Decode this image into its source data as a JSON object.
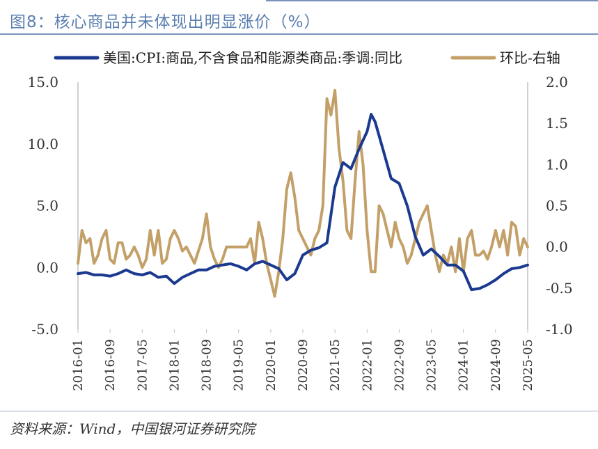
{
  "header": {
    "title": "图8：核心商品并未体现出明显涨价（%）"
  },
  "footer": {
    "source": "资料来源：Wind，中国银河证券研究院"
  },
  "colors": {
    "series1": "#1b3a8f",
    "series2": "#c4a069",
    "title": "#5b7fb0",
    "axis": "#bfbfbf"
  },
  "chart_data": {
    "type": "line",
    "legend_position": "top",
    "grid": false,
    "x_ticks": [
      "2016-01",
      "2016-09",
      "2017-05",
      "2018-01",
      "2018-09",
      "2019-05",
      "2020-01",
      "2020-09",
      "2021-05",
      "2022-01",
      "2022-09",
      "2023-05",
      "2024-01",
      "2024-09",
      "2025-05"
    ],
    "y_left": {
      "ylim": [
        -5,
        15
      ],
      "ticks": [
        "15.0",
        "10.0",
        "5.0",
        "0.0",
        "-5.0"
      ]
    },
    "y_right": {
      "ylim": [
        -1,
        2
      ],
      "ticks": [
        "2.0",
        "1.5",
        "1.0",
        "0.5",
        "0.0",
        "-0.5",
        "-1.0"
      ]
    },
    "x_range": [
      "2016-01",
      "2025-05"
    ],
    "series": [
      {
        "name": "美国:CPI:商品,不含食品和能源类商品:季调:同比",
        "axis": "left",
        "points": [
          [
            "2016-01",
            -0.5
          ],
          [
            "2016-03",
            -0.4
          ],
          [
            "2016-05",
            -0.6
          ],
          [
            "2016-07",
            -0.6
          ],
          [
            "2016-09",
            -0.7
          ],
          [
            "2016-11",
            -0.5
          ],
          [
            "2017-01",
            -0.2
          ],
          [
            "2017-03",
            -0.5
          ],
          [
            "2017-05",
            -0.6
          ],
          [
            "2017-07",
            -0.4
          ],
          [
            "2017-09",
            -0.8
          ],
          [
            "2017-11",
            -0.7
          ],
          [
            "2018-01",
            -1.3
          ],
          [
            "2018-03",
            -0.8
          ],
          [
            "2018-05",
            -0.5
          ],
          [
            "2018-07",
            -0.2
          ],
          [
            "2018-09",
            -0.2
          ],
          [
            "2018-11",
            0.1
          ],
          [
            "2019-01",
            0.2
          ],
          [
            "2019-03",
            0.3
          ],
          [
            "2019-05",
            0.1
          ],
          [
            "2019-07",
            -0.2
          ],
          [
            "2019-09",
            0.3
          ],
          [
            "2019-11",
            0.5
          ],
          [
            "2020-01",
            0.2
          ],
          [
            "2020-03",
            -0.1
          ],
          [
            "2020-05",
            -1.0
          ],
          [
            "2020-07",
            -0.5
          ],
          [
            "2020-09",
            1.0
          ],
          [
            "2020-11",
            1.4
          ],
          [
            "2021-01",
            1.6
          ],
          [
            "2021-03",
            2.0
          ],
          [
            "2021-05",
            6.5
          ],
          [
            "2021-07",
            8.5
          ],
          [
            "2021-09",
            8.0
          ],
          [
            "2021-11",
            9.6
          ],
          [
            "2022-01",
            11.0
          ],
          [
            "2022-02",
            12.4
          ],
          [
            "2022-03",
            11.8
          ],
          [
            "2022-05",
            9.5
          ],
          [
            "2022-07",
            7.2
          ],
          [
            "2022-09",
            6.8
          ],
          [
            "2022-11",
            5.0
          ],
          [
            "2023-01",
            2.5
          ],
          [
            "2023-03",
            1.0
          ],
          [
            "2023-05",
            1.5
          ],
          [
            "2023-07",
            0.9
          ],
          [
            "2023-09",
            0.2
          ],
          [
            "2023-11",
            0.2
          ],
          [
            "2024-01",
            -0.3
          ],
          [
            "2024-03",
            -1.8
          ],
          [
            "2024-05",
            -1.7
          ],
          [
            "2024-07",
            -1.4
          ],
          [
            "2024-09",
            -1.0
          ],
          [
            "2024-11",
            -0.5
          ],
          [
            "2025-01",
            -0.1
          ],
          [
            "2025-03",
            0.0
          ],
          [
            "2025-05",
            0.2
          ]
        ]
      },
      {
        "name": "环比-右轴",
        "axis": "right",
        "points": [
          [
            "2016-01",
            -0.2
          ],
          [
            "2016-02",
            0.2
          ],
          [
            "2016-03",
            0.05
          ],
          [
            "2016-04",
            0.1
          ],
          [
            "2016-05",
            -0.2
          ],
          [
            "2016-06",
            -0.1
          ],
          [
            "2016-07",
            0.1
          ],
          [
            "2016-08",
            0.2
          ],
          [
            "2016-09",
            -0.15
          ],
          [
            "2016-10",
            -0.2
          ],
          [
            "2016-11",
            0.05
          ],
          [
            "2016-12",
            0.05
          ],
          [
            "2017-01",
            -0.15
          ],
          [
            "2017-02",
            -0.1
          ],
          [
            "2017-03",
            0.0
          ],
          [
            "2017-04",
            -0.1
          ],
          [
            "2017-05",
            -0.25
          ],
          [
            "2017-06",
            -0.15
          ],
          [
            "2017-07",
            0.2
          ],
          [
            "2017-08",
            -0.1
          ],
          [
            "2017-09",
            0.2
          ],
          [
            "2017-10",
            -0.2
          ],
          [
            "2017-11",
            -0.15
          ],
          [
            "2017-12",
            0.1
          ],
          [
            "2018-01",
            0.2
          ],
          [
            "2018-02",
            0.1
          ],
          [
            "2018-03",
            -0.05
          ],
          [
            "2018-04",
            0.0
          ],
          [
            "2018-05",
            -0.1
          ],
          [
            "2018-06",
            -0.2
          ],
          [
            "2018-07",
            -0.05
          ],
          [
            "2018-08",
            0.1
          ],
          [
            "2018-09",
            0.4
          ],
          [
            "2018-10",
            0.0
          ],
          [
            "2018-11",
            -0.15
          ],
          [
            "2018-12",
            -0.25
          ],
          [
            "2019-01",
            -0.15
          ],
          [
            "2019-02",
            0.0
          ],
          [
            "2019-03",
            0.0
          ],
          [
            "2019-04",
            0.0
          ],
          [
            "2019-05",
            0.0
          ],
          [
            "2019-06",
            0.0
          ],
          [
            "2019-07",
            0.0
          ],
          [
            "2019-08",
            0.1
          ],
          [
            "2019-09",
            -0.2
          ],
          [
            "2019-10",
            0.3
          ],
          [
            "2019-11",
            0.1
          ],
          [
            "2019-12",
            -0.2
          ],
          [
            "2020-01",
            -0.4
          ],
          [
            "2020-02",
            -0.6
          ],
          [
            "2020-03",
            -0.3
          ],
          [
            "2020-04",
            0.1
          ],
          [
            "2020-05",
            0.7
          ],
          [
            "2020-06",
            0.9
          ],
          [
            "2020-07",
            0.6
          ],
          [
            "2020-08",
            0.2
          ],
          [
            "2020-09",
            0.1
          ],
          [
            "2020-10",
            0.0
          ],
          [
            "2020-11",
            -0.1
          ],
          [
            "2020-12",
            0.1
          ],
          [
            "2021-01",
            0.2
          ],
          [
            "2021-02",
            0.5
          ],
          [
            "2021-03",
            1.8
          ],
          [
            "2021-04",
            1.6
          ],
          [
            "2021-05",
            1.9
          ],
          [
            "2021-06",
            1.2
          ],
          [
            "2021-07",
            0.8
          ],
          [
            "2021-08",
            0.2
          ],
          [
            "2021-09",
            0.1
          ],
          [
            "2021-10",
            0.8
          ],
          [
            "2021-11",
            1.4
          ],
          [
            "2021-12",
            1.0
          ],
          [
            "2022-01",
            0.2
          ],
          [
            "2022-02",
            -0.3
          ],
          [
            "2022-03",
            -0.3
          ],
          [
            "2022-04",
            0.5
          ],
          [
            "2022-05",
            0.4
          ],
          [
            "2022-06",
            0.2
          ],
          [
            "2022-07",
            0.0
          ],
          [
            "2022-08",
            0.3
          ],
          [
            "2022-09",
            0.1
          ],
          [
            "2022-10",
            0.0
          ],
          [
            "2022-11",
            -0.2
          ],
          [
            "2022-12",
            -0.1
          ],
          [
            "2023-01",
            0.1
          ],
          [
            "2023-02",
            0.3
          ],
          [
            "2023-03",
            0.4
          ],
          [
            "2023-04",
            0.5
          ],
          [
            "2023-05",
            0.2
          ],
          [
            "2023-06",
            -0.1
          ],
          [
            "2023-07",
            -0.3
          ],
          [
            "2023-08",
            -0.1
          ],
          [
            "2023-09",
            -0.2
          ],
          [
            "2023-10",
            0.0
          ],
          [
            "2023-11",
            -0.3
          ],
          [
            "2023-12",
            0.1
          ],
          [
            "2024-01",
            -0.3
          ],
          [
            "2024-02",
            0.1
          ],
          [
            "2024-03",
            0.2
          ],
          [
            "2024-04",
            -0.1
          ],
          [
            "2024-05",
            -0.1
          ],
          [
            "2024-06",
            -0.05
          ],
          [
            "2024-07",
            -0.15
          ],
          [
            "2024-08",
            0.0
          ],
          [
            "2024-09",
            0.2
          ],
          [
            "2024-10",
            0.0
          ],
          [
            "2024-11",
            0.2
          ],
          [
            "2024-12",
            -0.1
          ],
          [
            "2025-01",
            0.3
          ],
          [
            "2025-02",
            0.25
          ],
          [
            "2025-03",
            -0.1
          ],
          [
            "2025-04",
            0.1
          ],
          [
            "2025-05",
            0.0
          ]
        ]
      }
    ]
  }
}
